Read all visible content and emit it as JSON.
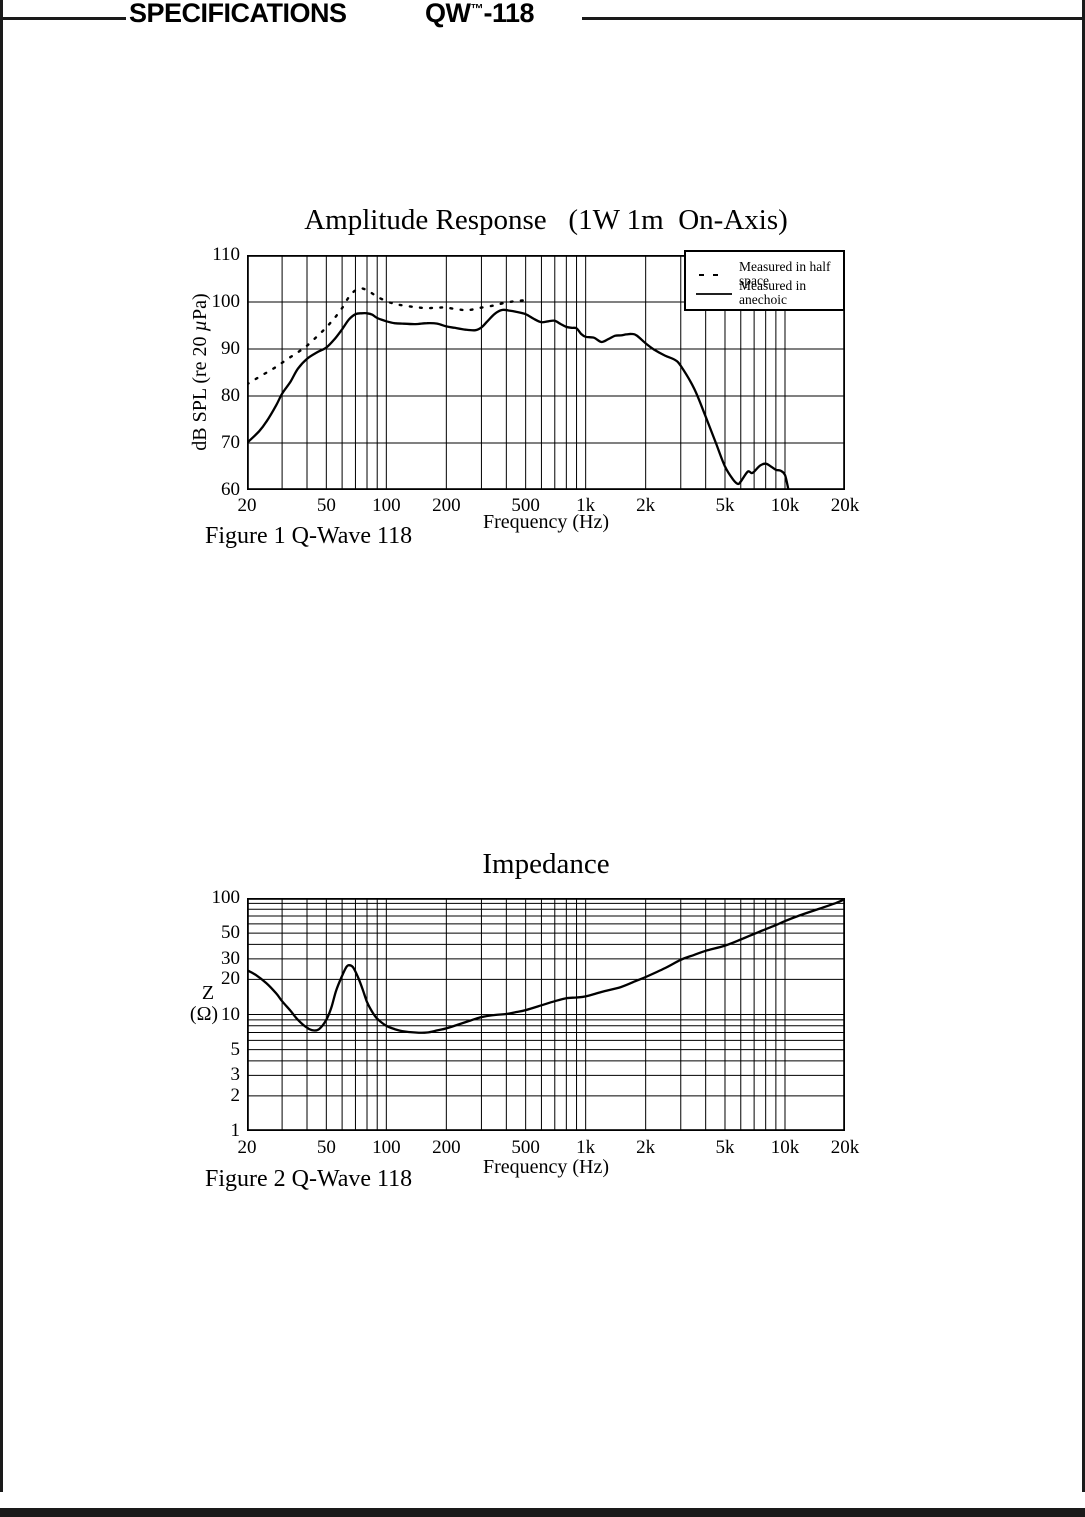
{
  "header": {
    "section_title": "SPECIFICATIONS",
    "model": "QW",
    "model_tm": "™",
    "model_suffix": "-118"
  },
  "chart_data": [
    {
      "type": "line",
      "title": "Amplitude Response   (1W 1m  On-Axis)",
      "caption": "Figure 1 Q-Wave 118",
      "xlabel": "Frequency (Hz)",
      "ylabel_parts": [
        "dB SPL (re 20 ",
        "µ",
        "Pa)"
      ],
      "x_scale": "log",
      "y_scale": "linear",
      "xlim": [
        20,
        20000
      ],
      "ylim": [
        60,
        110
      ],
      "y_grid_step": 10,
      "grid": "on",
      "x_ticks": [
        [
          20,
          "20"
        ],
        [
          50,
          "50"
        ],
        [
          100,
          "100"
        ],
        [
          200,
          "200"
        ],
        [
          500,
          "500"
        ],
        [
          1000,
          "1k"
        ],
        [
          2000,
          "2k"
        ],
        [
          5000,
          "5k"
        ],
        [
          10000,
          "10k"
        ],
        [
          20000,
          "20k"
        ]
      ],
      "y_ticks": [
        [
          110,
          "110"
        ],
        [
          100,
          "100"
        ],
        [
          90,
          "90"
        ],
        [
          80,
          "80"
        ],
        [
          70,
          "70"
        ],
        [
          60,
          "60"
        ]
      ],
      "legend": {
        "position": "top-right",
        "entries": [
          {
            "label": "Measured in half space",
            "style": "dotted"
          },
          {
            "label": "Measured in anechoic",
            "style": "solid"
          }
        ]
      },
      "series": [
        {
          "name": "Measured in half space",
          "style": "dotted",
          "points": [
            [
              20,
              82.5
            ],
            [
              24,
              84.5
            ],
            [
              28,
              86.2
            ],
            [
              32,
              87.9
            ],
            [
              36,
              89.3
            ],
            [
              40,
              90.7
            ],
            [
              45,
              92.7
            ],
            [
              50,
              94.6
            ],
            [
              55,
              96.6
            ],
            [
              60,
              98.7
            ],
            [
              65,
              101.1
            ],
            [
              70,
              102.5
            ],
            [
              75,
              102.9
            ],
            [
              80,
              102.5
            ],
            [
              85,
              101.8
            ],
            [
              90,
              101.1
            ],
            [
              100,
              100.2
            ],
            [
              110,
              99.6
            ],
            [
              120,
              99.3
            ],
            [
              140,
              98.9
            ],
            [
              160,
              98.7
            ],
            [
              180,
              98.8
            ],
            [
              200,
              98.8
            ],
            [
              230,
              98.4
            ],
            [
              260,
              98.3
            ],
            [
              300,
              98.8
            ],
            [
              350,
              99.3
            ],
            [
              400,
              99.9
            ],
            [
              450,
              100.2
            ],
            [
              500,
              100.4
            ]
          ]
        },
        {
          "name": "Measured in anechoic",
          "style": "solid",
          "points": [
            [
              20,
              70
            ],
            [
              23,
              72.5
            ],
            [
              25,
              74.5
            ],
            [
              28,
              78
            ],
            [
              30,
              80.5
            ],
            [
              33,
              83
            ],
            [
              36,
              85.8
            ],
            [
              40,
              87.9
            ],
            [
              45,
              89.3
            ],
            [
              50,
              90.3
            ],
            [
              55,
              92.1
            ],
            [
              60,
              94.2
            ],
            [
              65,
              96.3
            ],
            [
              70,
              97.4
            ],
            [
              75,
              97.6
            ],
            [
              80,
              97.6
            ],
            [
              85,
              97.3
            ],
            [
              90,
              96.6
            ],
            [
              100,
              95.9
            ],
            [
              110,
              95.5
            ],
            [
              120,
              95.4
            ],
            [
              140,
              95.3
            ],
            [
              160,
              95.5
            ],
            [
              180,
              95.4
            ],
            [
              200,
              94.8
            ],
            [
              220,
              94.5
            ],
            [
              250,
              94.1
            ],
            [
              280,
              94.0
            ],
            [
              300,
              94.6
            ],
            [
              320,
              95.8
            ],
            [
              350,
              97.5
            ],
            [
              380,
              98.3
            ],
            [
              410,
              98.2
            ],
            [
              450,
              97.9
            ],
            [
              500,
              97.4
            ],
            [
              550,
              96.4
            ],
            [
              600,
              95.7
            ],
            [
              650,
              95.9
            ],
            [
              700,
              96.0
            ],
            [
              750,
              95.3
            ],
            [
              800,
              94.7
            ],
            [
              850,
              94.5
            ],
            [
              900,
              94.4
            ],
            [
              950,
              93.2
            ],
            [
              1000,
              92.6
            ],
            [
              1100,
              92.4
            ],
            [
              1200,
              91.5
            ],
            [
              1300,
              92.1
            ],
            [
              1400,
              92.8
            ],
            [
              1500,
              92.9
            ],
            [
              1600,
              93.1
            ],
            [
              1700,
              93.2
            ],
            [
              1800,
              92.9
            ],
            [
              2000,
              91.2
            ],
            [
              2200,
              89.9
            ],
            [
              2500,
              88.6
            ],
            [
              2800,
              87.7
            ],
            [
              3000,
              86.4
            ],
            [
              3500,
              81.6
            ],
            [
              4000,
              75.6
            ],
            [
              4500,
              70
            ],
            [
              5000,
              65
            ],
            [
              5500,
              62.2
            ],
            [
              5800,
              61.3
            ],
            [
              6000,
              61.8
            ],
            [
              6500,
              63.9
            ],
            [
              6800,
              63.6
            ],
            [
              7000,
              63.9
            ],
            [
              7500,
              65.2
            ],
            [
              8000,
              65.6
            ],
            [
              8500,
              65
            ],
            [
              9000,
              64.3
            ],
            [
              9500,
              64.1
            ],
            [
              10000,
              63.2
            ],
            [
              10400,
              60.1
            ]
          ]
        }
      ]
    },
    {
      "type": "line",
      "title": "Impedance",
      "caption": "Figure 2 Q-Wave 118",
      "xlabel": "Frequency (Hz)",
      "ylabel_lines": [
        "Z",
        "(Ω)"
      ],
      "x_scale": "log",
      "y_scale": "log",
      "xlim": [
        20,
        20000
      ],
      "ylim": [
        1,
        100
      ],
      "grid": "on",
      "x_ticks": [
        [
          20,
          "20"
        ],
        [
          50,
          "50"
        ],
        [
          100,
          "100"
        ],
        [
          200,
          "200"
        ],
        [
          500,
          "500"
        ],
        [
          1000,
          "1k"
        ],
        [
          2000,
          "2k"
        ],
        [
          5000,
          "5k"
        ],
        [
          10000,
          "10k"
        ],
        [
          20000,
          "20k"
        ]
      ],
      "y_ticks": [
        [
          100,
          "100"
        ],
        [
          50,
          "50"
        ],
        [
          30,
          "30"
        ],
        [
          20,
          "20"
        ],
        [
          10,
          "10"
        ],
        [
          5,
          "5"
        ],
        [
          3,
          "3"
        ],
        [
          2,
          "2"
        ],
        [
          1,
          "1"
        ]
      ],
      "series": [
        {
          "name": "Impedance",
          "style": "solid",
          "points": [
            [
              20,
              24
            ],
            [
              22,
              22
            ],
            [
              25,
              18.6
            ],
            [
              28,
              15.2
            ],
            [
              30,
              13
            ],
            [
              33,
              10.8
            ],
            [
              36,
              9
            ],
            [
              40,
              7.7
            ],
            [
              43,
              7.3
            ],
            [
              46,
              7.5
            ],
            [
              50,
              9
            ],
            [
              53,
              11.5
            ],
            [
              56,
              16
            ],
            [
              60,
              21.5
            ],
            [
              63,
              25.5
            ],
            [
              65,
              26.5
            ],
            [
              68,
              25.5
            ],
            [
              72,
              21
            ],
            [
              76,
              16.5
            ],
            [
              80,
              12.8
            ],
            [
              85,
              10.5
            ],
            [
              90,
              9.2
            ],
            [
              100,
              8
            ],
            [
              110,
              7.5
            ],
            [
              120,
              7.2
            ],
            [
              140,
              7
            ],
            [
              160,
              7
            ],
            [
              180,
              7.3
            ],
            [
              200,
              7.6
            ],
            [
              230,
              8.2
            ],
            [
              260,
              8.8
            ],
            [
              300,
              9.5
            ],
            [
              350,
              9.9
            ],
            [
              400,
              10.1
            ],
            [
              450,
              10.5
            ],
            [
              500,
              10.9
            ],
            [
              600,
              12
            ],
            [
              700,
              13
            ],
            [
              800,
              13.8
            ],
            [
              900,
              14
            ],
            [
              1000,
              14.3
            ],
            [
              1200,
              15.6
            ],
            [
              1500,
              17.2
            ],
            [
              1800,
              19.5
            ],
            [
              2000,
              21
            ],
            [
              2500,
              25
            ],
            [
              3000,
              29.5
            ],
            [
              3500,
              32.5
            ],
            [
              4000,
              35.2
            ],
            [
              5000,
              39
            ],
            [
              6000,
              44
            ],
            [
              7000,
              49.2
            ],
            [
              8000,
              54
            ],
            [
              9000,
              58.5
            ],
            [
              10000,
              63.3
            ],
            [
              12000,
              71.5
            ],
            [
              15000,
              81.2
            ],
            [
              18000,
              90.5
            ],
            [
              20000,
              98
            ]
          ]
        }
      ]
    }
  ]
}
